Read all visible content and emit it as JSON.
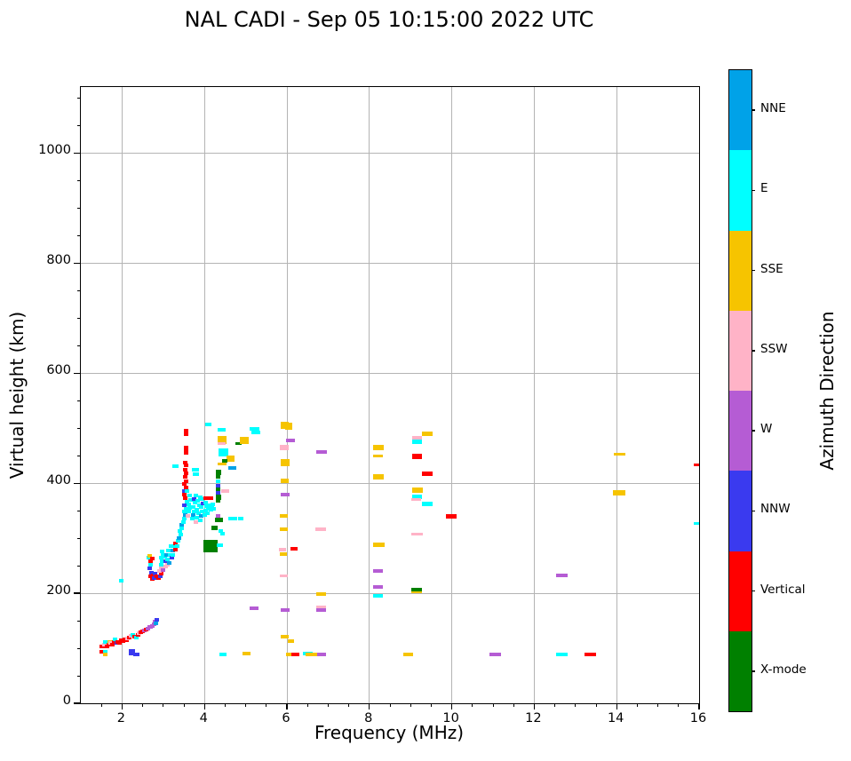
{
  "title": "NAL CADI - Sep 05 10:15:00 2022 UTC",
  "chart_data": {
    "type": "scatter",
    "title": "NAL CADI - Sep 05 10:15:00 2022 UTC",
    "xlabel": "Frequency (MHz)",
    "ylabel": "Virtual height (km)",
    "xlim": [
      1,
      16
    ],
    "ylim": [
      0,
      1120
    ],
    "x_major_ticks": [
      2,
      4,
      6,
      8,
      10,
      12,
      14,
      16
    ],
    "x_minor_step": 0.5,
    "y_major_ticks": [
      0,
      200,
      400,
      600,
      800,
      1000
    ],
    "y_minor_step": 50,
    "grid": true,
    "grid_color": "#b4b4b4",
    "legend_position": "right-colorbar",
    "directions": {
      "NNE": "#00a2e8",
      "E": "#00ffff",
      "SSE": "#f6c400",
      "SSW": "#ffb3c7",
      "W": "#b55cd4",
      "NNW": "#3a3aef",
      "V": "#ff0000",
      "X": "#008000"
    },
    "colorbar": {
      "label": "Azimuth Direction",
      "segments_top_to_bottom": [
        {
          "label": "NNE",
          "color": "#00a2e8"
        },
        {
          "label": "E",
          "color": "#00ffff"
        },
        {
          "label": "SSE",
          "color": "#f6c400"
        },
        {
          "label": "SSW",
          "color": "#ffb3c7"
        },
        {
          "label": "W",
          "color": "#b55cd4"
        },
        {
          "label": "NNW",
          "color": "#3a3aef"
        },
        {
          "label": "Vertical",
          "color": "#ff0000"
        },
        {
          "label": "X-mode",
          "color": "#008000"
        }
      ]
    },
    "points_format": "[freq_MHz, height_km, direction, width_px?, height_px?]",
    "points": [
      [
        1.5,
        104,
        "V"
      ],
      [
        1.54,
        103,
        "V"
      ],
      [
        1.58,
        106,
        "SSW"
      ],
      [
        1.6,
        111,
        "E"
      ],
      [
        1.63,
        104,
        "V"
      ],
      [
        1.67,
        107,
        "V"
      ],
      [
        1.7,
        112,
        "SSE"
      ],
      [
        1.73,
        109,
        "SSW"
      ],
      [
        1.77,
        107,
        "V"
      ],
      [
        1.8,
        111,
        "V"
      ],
      [
        1.84,
        116,
        "E"
      ],
      [
        1.87,
        110,
        "NNW"
      ],
      [
        1.9,
        112,
        "V"
      ],
      [
        1.94,
        110,
        "V"
      ],
      [
        1.98,
        114,
        "V"
      ],
      [
        2.02,
        113,
        "V"
      ],
      [
        2.06,
        117,
        "V"
      ],
      [
        2.1,
        115,
        "V"
      ],
      [
        2.14,
        118,
        "SSW"
      ],
      [
        2.18,
        120,
        "V"
      ],
      [
        2.22,
        122,
        "SSW"
      ],
      [
        2.26,
        124,
        "E"
      ],
      [
        2.3,
        121,
        "V"
      ],
      [
        2.34,
        119,
        "E"
      ],
      [
        2.38,
        125,
        "V"
      ],
      [
        2.42,
        127,
        "SSW"
      ],
      [
        2.46,
        129,
        "V"
      ],
      [
        2.5,
        131,
        "V"
      ],
      [
        2.54,
        133,
        "W"
      ],
      [
        2.58,
        134,
        "V"
      ],
      [
        2.62,
        136,
        "W"
      ],
      [
        2.66,
        138,
        "W"
      ],
      [
        2.7,
        139,
        "W"
      ],
      [
        2.74,
        141,
        "W"
      ],
      [
        2.78,
        143,
        "W"
      ],
      [
        2.8,
        148,
        "W"
      ],
      [
        2.82,
        145,
        "NNE"
      ],
      [
        2.84,
        151,
        "NNW"
      ],
      [
        1.5,
        93,
        "V"
      ],
      [
        1.59,
        94,
        "E"
      ],
      [
        1.6,
        88,
        "SSE"
      ],
      [
        2.24,
        92,
        "NNW",
        7,
        7
      ],
      [
        2.35,
        89,
        "NNW",
        7,
        4
      ],
      [
        1.97,
        223,
        "E"
      ],
      [
        2.64,
        265,
        "E"
      ],
      [
        2.66,
        268,
        "SSE"
      ],
      [
        2.7,
        259,
        "V"
      ],
      [
        2.73,
        263,
        "V"
      ],
      [
        2.7,
        252,
        "E"
      ],
      [
        2.68,
        245,
        "NNW"
      ],
      [
        2.71,
        238,
        "NNW"
      ],
      [
        2.7,
        230,
        "V"
      ],
      [
        2.74,
        226,
        "V"
      ],
      [
        2.76,
        233,
        "V"
      ],
      [
        2.78,
        228,
        "NNW"
      ],
      [
        2.8,
        236,
        "NNW"
      ],
      [
        2.84,
        230,
        "V"
      ],
      [
        2.88,
        227,
        "V"
      ],
      [
        2.92,
        231,
        "NNW"
      ],
      [
        2.96,
        235,
        "V"
      ],
      [
        2.9,
        240,
        "SSW"
      ],
      [
        2.95,
        245,
        "SSW"
      ],
      [
        3.0,
        242,
        "W"
      ],
      [
        3.05,
        248,
        "SSW"
      ],
      [
        2.95,
        252,
        "E"
      ],
      [
        2.98,
        258,
        "E"
      ],
      [
        2.96,
        264,
        "E"
      ],
      [
        3.0,
        270,
        "E"
      ],
      [
        2.98,
        276,
        "E"
      ],
      [
        3.03,
        266,
        "E"
      ],
      [
        3.06,
        258,
        "NNW"
      ],
      [
        3.1,
        252,
        "SSW"
      ],
      [
        3.14,
        255,
        "NNE"
      ],
      [
        3.1,
        262,
        "E"
      ],
      [
        3.08,
        270,
        "NNE"
      ],
      [
        3.12,
        278,
        "E"
      ],
      [
        3.16,
        270,
        "E"
      ],
      [
        3.2,
        264,
        "NNW"
      ],
      [
        3.24,
        270,
        "E"
      ],
      [
        3.22,
        278,
        "NNE"
      ],
      [
        3.18,
        286,
        "E"
      ],
      [
        3.26,
        286,
        "E"
      ],
      [
        3.3,
        280,
        "V"
      ],
      [
        3.3,
        291,
        "V"
      ],
      [
        3.34,
        286,
        "E"
      ],
      [
        3.35,
        295,
        "E"
      ],
      [
        3.38,
        300,
        "NNE"
      ],
      [
        3.42,
        306,
        "E"
      ],
      [
        3.4,
        313,
        "E"
      ],
      [
        3.45,
        318,
        "E"
      ],
      [
        3.44,
        325,
        "NNE"
      ],
      [
        3.48,
        330,
        "E"
      ],
      [
        3.5,
        336,
        "E"
      ],
      [
        3.54,
        342,
        "NNE"
      ],
      [
        3.5,
        348,
        "E"
      ],
      [
        3.55,
        354,
        "E"
      ],
      [
        3.52,
        360,
        "NNW"
      ],
      [
        3.57,
        366,
        "E"
      ],
      [
        3.54,
        373,
        "V"
      ],
      [
        3.6,
        340,
        "SSW"
      ],
      [
        3.62,
        348,
        "E"
      ],
      [
        3.65,
        355,
        "E"
      ],
      [
        3.62,
        362,
        "E"
      ],
      [
        3.67,
        370,
        "E"
      ],
      [
        3.64,
        377,
        "E"
      ],
      [
        3.7,
        335,
        "E"
      ],
      [
        3.72,
        342,
        "NNE"
      ],
      [
        3.75,
        349,
        "E"
      ],
      [
        3.72,
        357,
        "E"
      ],
      [
        3.77,
        364,
        "E"
      ],
      [
        3.74,
        371,
        "NNW"
      ],
      [
        3.8,
        378,
        "E"
      ],
      [
        3.8,
        330,
        "SSW"
      ],
      [
        3.82,
        338,
        "E"
      ],
      [
        3.85,
        345,
        "E"
      ],
      [
        3.82,
        352,
        "E"
      ],
      [
        3.87,
        360,
        "E"
      ],
      [
        3.84,
        368,
        "E"
      ],
      [
        3.9,
        375,
        "E"
      ],
      [
        3.9,
        332,
        "E"
      ],
      [
        3.92,
        340,
        "NNE"
      ],
      [
        3.95,
        348,
        "E"
      ],
      [
        3.92,
        356,
        "E"
      ],
      [
        3.97,
        363,
        "NNW"
      ],
      [
        3.94,
        371,
        "E"
      ],
      [
        4.0,
        342,
        "E"
      ],
      [
        4.02,
        350,
        "E"
      ],
      [
        4.05,
        358,
        "E"
      ],
      [
        4.02,
        365,
        "E"
      ],
      [
        4.08,
        345,
        "E"
      ],
      [
        4.1,
        353,
        "E"
      ],
      [
        4.12,
        360,
        "E"
      ],
      [
        4.15,
        352,
        "E"
      ],
      [
        4.18,
        358,
        "E"
      ],
      [
        4.22,
        354,
        "E"
      ],
      [
        4.2,
        362,
        "E"
      ],
      [
        3.5,
        380,
        "V"
      ],
      [
        3.52,
        385,
        "NNW"
      ],
      [
        3.58,
        386,
        "E"
      ],
      [
        3.55,
        392,
        "V"
      ],
      [
        3.52,
        398,
        "V"
      ],
      [
        3.56,
        404,
        "V"
      ],
      [
        3.53,
        411,
        "V"
      ],
      [
        3.56,
        418,
        "V"
      ],
      [
        3.54,
        425,
        "V"
      ],
      [
        3.56,
        432,
        "V"
      ],
      [
        3.54,
        438,
        "V"
      ],
      [
        3.56,
        458,
        "V",
        5,
        7
      ],
      [
        3.55,
        465,
        "V"
      ],
      [
        3.55,
        493,
        "V",
        5,
        8
      ],
      [
        3.3,
        431,
        "E",
        7,
        4
      ],
      [
        3.78,
        424,
        "E",
        8,
        4
      ],
      [
        3.8,
        416,
        "E",
        7,
        4
      ],
      [
        4.1,
        373,
        "V",
        11,
        4
      ],
      [
        4.33,
        419,
        "X",
        6,
        6
      ],
      [
        4.33,
        411,
        "X"
      ],
      [
        4.32,
        403,
        "E"
      ],
      [
        4.34,
        396,
        "NNW"
      ],
      [
        4.33,
        389,
        "X"
      ],
      [
        4.34,
        382,
        "NNW"
      ],
      [
        4.33,
        375,
        "X",
        6,
        6
      ],
      [
        4.33,
        368,
        "X"
      ],
      [
        4.32,
        340,
        "W"
      ],
      [
        4.36,
        334,
        "X",
        9,
        5
      ],
      [
        4.25,
        319,
        "X",
        7,
        5
      ],
      [
        4.4,
        313,
        "E"
      ],
      [
        4.43,
        308,
        "E"
      ],
      [
        4.5,
        386,
        "SSW",
        9,
        4
      ],
      [
        4.15,
        286,
        "X",
        16,
        14
      ],
      [
        4.38,
        288,
        "E",
        7,
        4
      ],
      [
        4.68,
        335,
        "E",
        10,
        4
      ],
      [
        4.88,
        335,
        "E",
        6,
        4
      ],
      [
        4.1,
        507,
        "E",
        7,
        4
      ],
      [
        4.42,
        497,
        "E",
        9,
        4
      ],
      [
        4.43,
        479,
        "SSE",
        10,
        9
      ],
      [
        4.42,
        472,
        "SSW",
        9,
        3
      ],
      [
        4.45,
        456,
        "E",
        11,
        9
      ],
      [
        4.43,
        435,
        "SSE",
        10,
        3
      ],
      [
        4.63,
        445,
        "SSE",
        9,
        7
      ],
      [
        4.68,
        427,
        "NNE",
        9,
        4
      ],
      [
        4.5,
        440,
        "X",
        6,
        4
      ],
      [
        4.82,
        472,
        "X",
        7,
        3
      ],
      [
        4.97,
        478,
        "SSE",
        10,
        8
      ],
      [
        5.22,
        499,
        "E",
        11,
        4
      ],
      [
        5.24,
        493,
        "E",
        10,
        4
      ],
      [
        4.45,
        88,
        "E",
        8,
        4
      ],
      [
        5.02,
        90,
        "SSE",
        9,
        4
      ],
      [
        5.2,
        173,
        "W",
        10,
        4
      ],
      [
        5.95,
        505,
        "SSE",
        9,
        8
      ],
      [
        6.04,
        504,
        "SSE",
        8,
        8
      ],
      [
        6.08,
        478,
        "W",
        10,
        4
      ],
      [
        5.93,
        465,
        "SSW",
        10,
        6
      ],
      [
        5.95,
        438,
        "SSE",
        10,
        8
      ],
      [
        5.95,
        405,
        "SSE",
        9,
        5
      ],
      [
        5.95,
        380,
        "W",
        10,
        4
      ],
      [
        5.93,
        341,
        "SSE",
        9,
        4
      ],
      [
        5.93,
        317,
        "SSE",
        9,
        4
      ],
      [
        5.9,
        280,
        "SSW",
        8,
        4
      ],
      [
        6.17,
        281,
        "V",
        8,
        4
      ],
      [
        5.92,
        271,
        "SSE",
        8,
        4
      ],
      [
        5.93,
        231,
        "SSW",
        9,
        3
      ],
      [
        5.95,
        170,
        "W",
        10,
        4
      ],
      [
        5.95,
        121,
        "SSE",
        9,
        4
      ],
      [
        6.09,
        113,
        "SSE",
        7,
        4
      ],
      [
        6.06,
        89,
        "SSE",
        8,
        4
      ],
      [
        6.2,
        88,
        "V",
        9,
        4
      ],
      [
        6.5,
        91,
        "E",
        11,
        4
      ],
      [
        6.6,
        88,
        "SSE",
        13,
        4
      ],
      [
        6.84,
        88,
        "W",
        10,
        4
      ],
      [
        6.83,
        457,
        "W",
        12,
        4
      ],
      [
        6.82,
        317,
        "SSW",
        12,
        4
      ],
      [
        6.83,
        198,
        "SSE",
        11,
        4
      ],
      [
        6.83,
        175,
        "SSW",
        11,
        4
      ],
      [
        6.82,
        169,
        "W",
        11,
        4
      ],
      [
        8.22,
        464,
        "SSE",
        12,
        6
      ],
      [
        8.2,
        450,
        "SSE",
        11,
        3
      ],
      [
        8.21,
        412,
        "SSE",
        12,
        6
      ],
      [
        8.22,
        288,
        "SSE",
        13,
        5
      ],
      [
        8.2,
        240,
        "W",
        11,
        4
      ],
      [
        8.2,
        212,
        "W",
        11,
        4
      ],
      [
        8.2,
        196,
        "E",
        11,
        4
      ],
      [
        9.16,
        481,
        "SSW",
        11,
        5
      ],
      [
        9.15,
        475,
        "E",
        11,
        5
      ],
      [
        9.4,
        490,
        "SSE",
        12,
        5
      ],
      [
        9.16,
        448,
        "V",
        11,
        6
      ],
      [
        9.4,
        417,
        "V",
        12,
        5
      ],
      [
        9.16,
        388,
        "SSE",
        12,
        6
      ],
      [
        9.15,
        375,
        "E",
        11,
        5
      ],
      [
        9.14,
        370,
        "SSW",
        11,
        3
      ],
      [
        9.4,
        363,
        "E",
        12,
        5
      ],
      [
        9.15,
        307,
        "SSW",
        13,
        3
      ],
      [
        9.15,
        206,
        "X",
        12,
        5
      ],
      [
        9.15,
        202,
        "SSE",
        12,
        2
      ],
      [
        8.94,
        89,
        "SSE",
        11,
        4
      ],
      [
        9.98,
        340,
        "V",
        12,
        5
      ],
      [
        11.06,
        88,
        "W",
        13,
        4
      ],
      [
        12.66,
        232,
        "W",
        13,
        4
      ],
      [
        12.66,
        88,
        "E",
        13,
        4
      ],
      [
        13.36,
        88,
        "V",
        13,
        4
      ],
      [
        14.08,
        452,
        "SSE",
        13,
        3
      ],
      [
        14.07,
        382,
        "SSE",
        14,
        6
      ],
      [
        15.93,
        433,
        "V",
        6,
        3
      ],
      [
        15.93,
        327,
        "E",
        6,
        3
      ]
    ]
  }
}
